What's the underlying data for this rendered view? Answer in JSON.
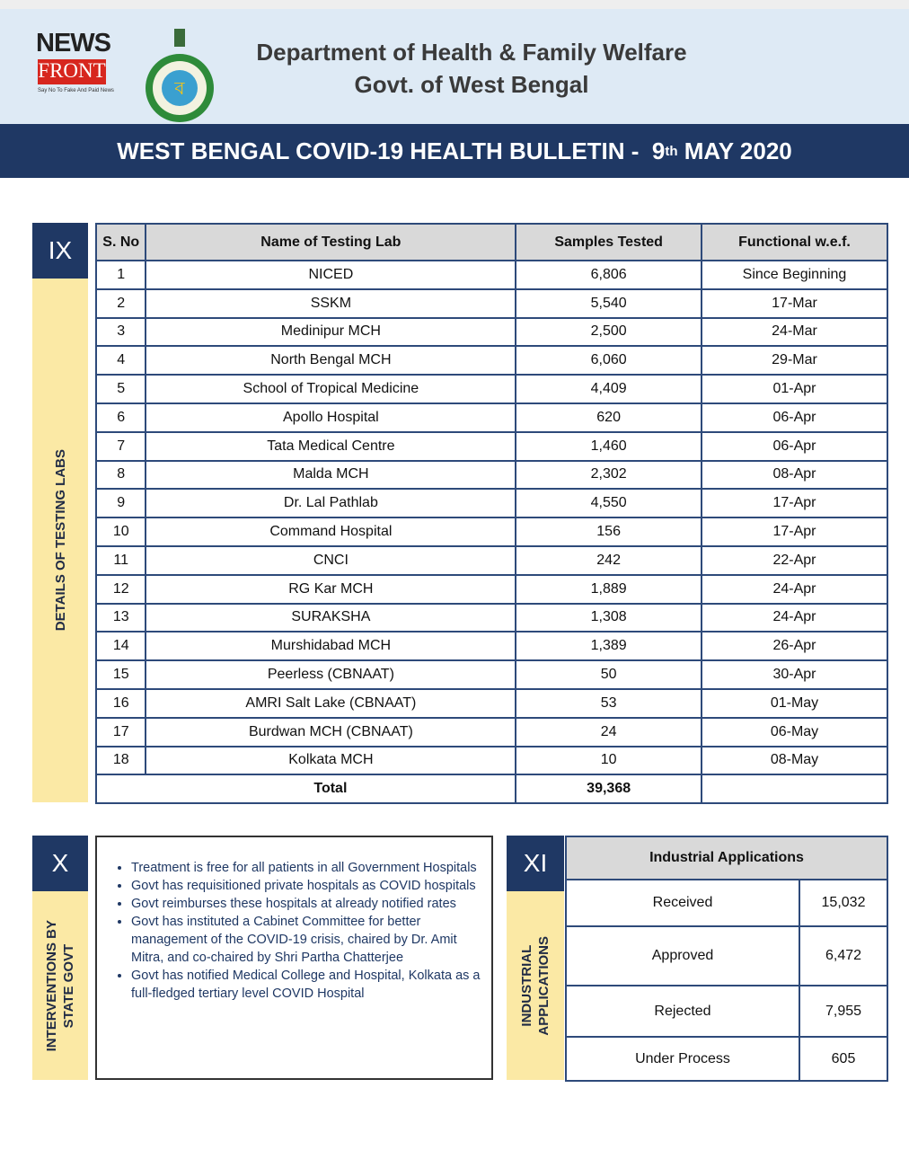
{
  "header": {
    "logo_top": "NEWS",
    "logo_bottom": "FRONT",
    "logo_tagline": "Say No To Fake And Paid News",
    "title_line1": "Department of Health & Family Welfare",
    "title_line2": "Govt. of West Bengal"
  },
  "bulletin": {
    "prefix": "WEST BENGAL COVID-19 HEALTH BULLETIN -",
    "day": "9",
    "suffix": "th",
    "month_year": "MAY 2020"
  },
  "labs": {
    "section": "IX",
    "side_label": "DETAILS OF TESTING LABS",
    "columns": [
      "S. No",
      "Name of Testing Lab",
      "Samples Tested",
      "Functional w.e.f."
    ],
    "rows": [
      [
        "1",
        "NICED",
        "6,806",
        "Since Beginning"
      ],
      [
        "2",
        "SSKM",
        "5,540",
        "17-Mar"
      ],
      [
        "3",
        "Medinipur MCH",
        "2,500",
        "24-Mar"
      ],
      [
        "4",
        "North Bengal MCH",
        "6,060",
        "29-Mar"
      ],
      [
        "5",
        "School of Tropical Medicine",
        "4,409",
        "01-Apr"
      ],
      [
        "6",
        "Apollo Hospital",
        "620",
        "06-Apr"
      ],
      [
        "7",
        "Tata Medical Centre",
        "1,460",
        "06-Apr"
      ],
      [
        "8",
        "Malda MCH",
        "2,302",
        "08-Apr"
      ],
      [
        "9",
        "Dr. Lal Pathlab",
        "4,550",
        "17-Apr"
      ],
      [
        "10",
        "Command Hospital",
        "156",
        "17-Apr"
      ],
      [
        "11",
        "CNCI",
        "242",
        "22-Apr"
      ],
      [
        "12",
        "RG Kar MCH",
        "1,889",
        "24-Apr"
      ],
      [
        "13",
        "SURAKSHA",
        "1,308",
        "24-Apr"
      ],
      [
        "14",
        "Murshidabad MCH",
        "1,389",
        "26-Apr"
      ],
      [
        "15",
        "Peerless (CBNAAT)",
        "50",
        "30-Apr"
      ],
      [
        "16",
        "AMRI Salt Lake (CBNAAT)",
        "53",
        "01-May"
      ],
      [
        "17",
        "Burdwan MCH (CBNAAT)",
        "24",
        "06-May"
      ],
      [
        "18",
        "Kolkata MCH",
        "10",
        "08-May"
      ]
    ],
    "total_label": "Total",
    "total_value": "39,368"
  },
  "interventions": {
    "section": "X",
    "side_label_line1": "INTERVENTIONS BY",
    "side_label_line2": "STATE GOVT",
    "items": [
      "Treatment is free for all patients in all Government Hospitals",
      "Govt has requisitioned private hospitals as COVID hospitals",
      "Govt reimburses these hospitals at already notified rates",
      "Govt has instituted a Cabinet Committee for better management of the COVID-19 crisis, chaired by Dr. Amit Mitra, and co-chaired by Shri Partha Chatterjee",
      "Govt has notified Medical College and Hospital, Kolkata as a full-fledged tertiary level COVID Hospital"
    ]
  },
  "industrial": {
    "section": "XI",
    "side_label_line1": "INDUSTRIAL",
    "side_label_line2": "APPLICATIONS",
    "heading": "Industrial Applications",
    "rows": [
      [
        "Received",
        "15,032"
      ],
      [
        "Approved",
        "6,472"
      ],
      [
        "Rejected",
        "7,955"
      ],
      [
        "Under Process",
        "605"
      ]
    ]
  }
}
